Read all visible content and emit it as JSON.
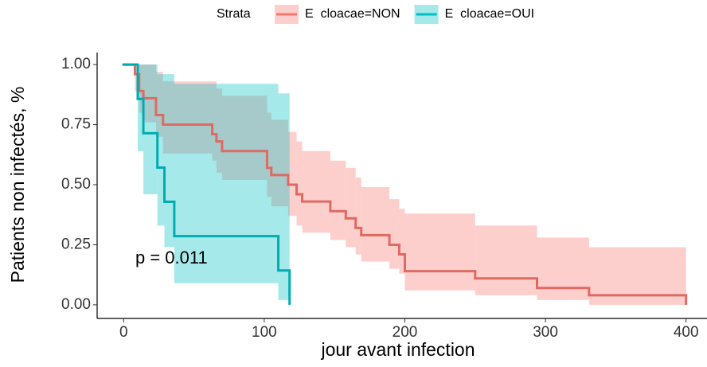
{
  "chart_data": {
    "type": "survival",
    "xlabel": "jour avant infection",
    "ylabel": "Patients non infectés, %",
    "legend_title": "Strata",
    "legend_position": "top",
    "annotation": "p = 0.011",
    "xlim": [
      -20,
      420
    ],
    "ylim": [
      -0.05,
      1.05
    ],
    "xticks": [
      0,
      100,
      200,
      300,
      400
    ],
    "yticks": [
      {
        "value": 0,
        "label": "0.00"
      },
      0.25,
      {
        "value": 0.5,
        "label": "0.50"
      },
      0.75,
      {
        "value": 1,
        "label": "1.00"
      }
    ],
    "series": [
      {
        "name": "E  cloacae=NON",
        "color": "#F8766D",
        "x": [
          0,
          8,
          11,
          14,
          23,
          28,
          63,
          66,
          70,
          102,
          105,
          117,
          123,
          127,
          147,
          158,
          165,
          169,
          189,
          196,
          200,
          250,
          294,
          331,
          400
        ],
        "values": [
          1,
          0.96,
          0.89,
          0.86,
          0.79,
          0.75,
          0.71,
          0.68,
          0.64,
          0.57,
          0.54,
          0.5,
          0.46,
          0.43,
          0.39,
          0.36,
          0.32,
          0.29,
          0.25,
          0.21,
          0.14,
          0.11,
          0.07,
          0.04,
          0
        ],
        "lower": [
          1,
          0.89,
          0.8,
          0.76,
          0.7,
          0.63,
          0.6,
          0.55,
          0.52,
          0.45,
          0.41,
          0.37,
          0.33,
          0.3,
          0.27,
          0.24,
          0.21,
          0.18,
          0.15,
          0.13,
          0.06,
          0.04,
          0.02,
          0.0,
          0
        ],
        "upper": [
          1,
          1,
          1,
          1,
          0.97,
          0.93,
          0.93,
          0.9,
          0.87,
          0.8,
          0.77,
          0.72,
          0.68,
          0.64,
          0.6,
          0.57,
          0.53,
          0.49,
          0.44,
          0.4,
          0.38,
          0.33,
          0.28,
          0.24,
          0
        ]
      },
      {
        "name": "E  cloacae=OUI",
        "color": "#00BFC4",
        "x": [
          0,
          10,
          14,
          24,
          29,
          36,
          110,
          118
        ],
        "values": [
          1,
          0.857,
          0.714,
          0.571,
          0.429,
          0.286,
          0.143,
          0
        ],
        "lower": [
          1,
          0.64,
          0.46,
          0.33,
          0.24,
          0.09,
          0.02,
          0
        ],
        "upper": [
          1,
          1,
          1,
          0.96,
          0.96,
          0.92,
          0.88,
          0
        ]
      }
    ]
  }
}
